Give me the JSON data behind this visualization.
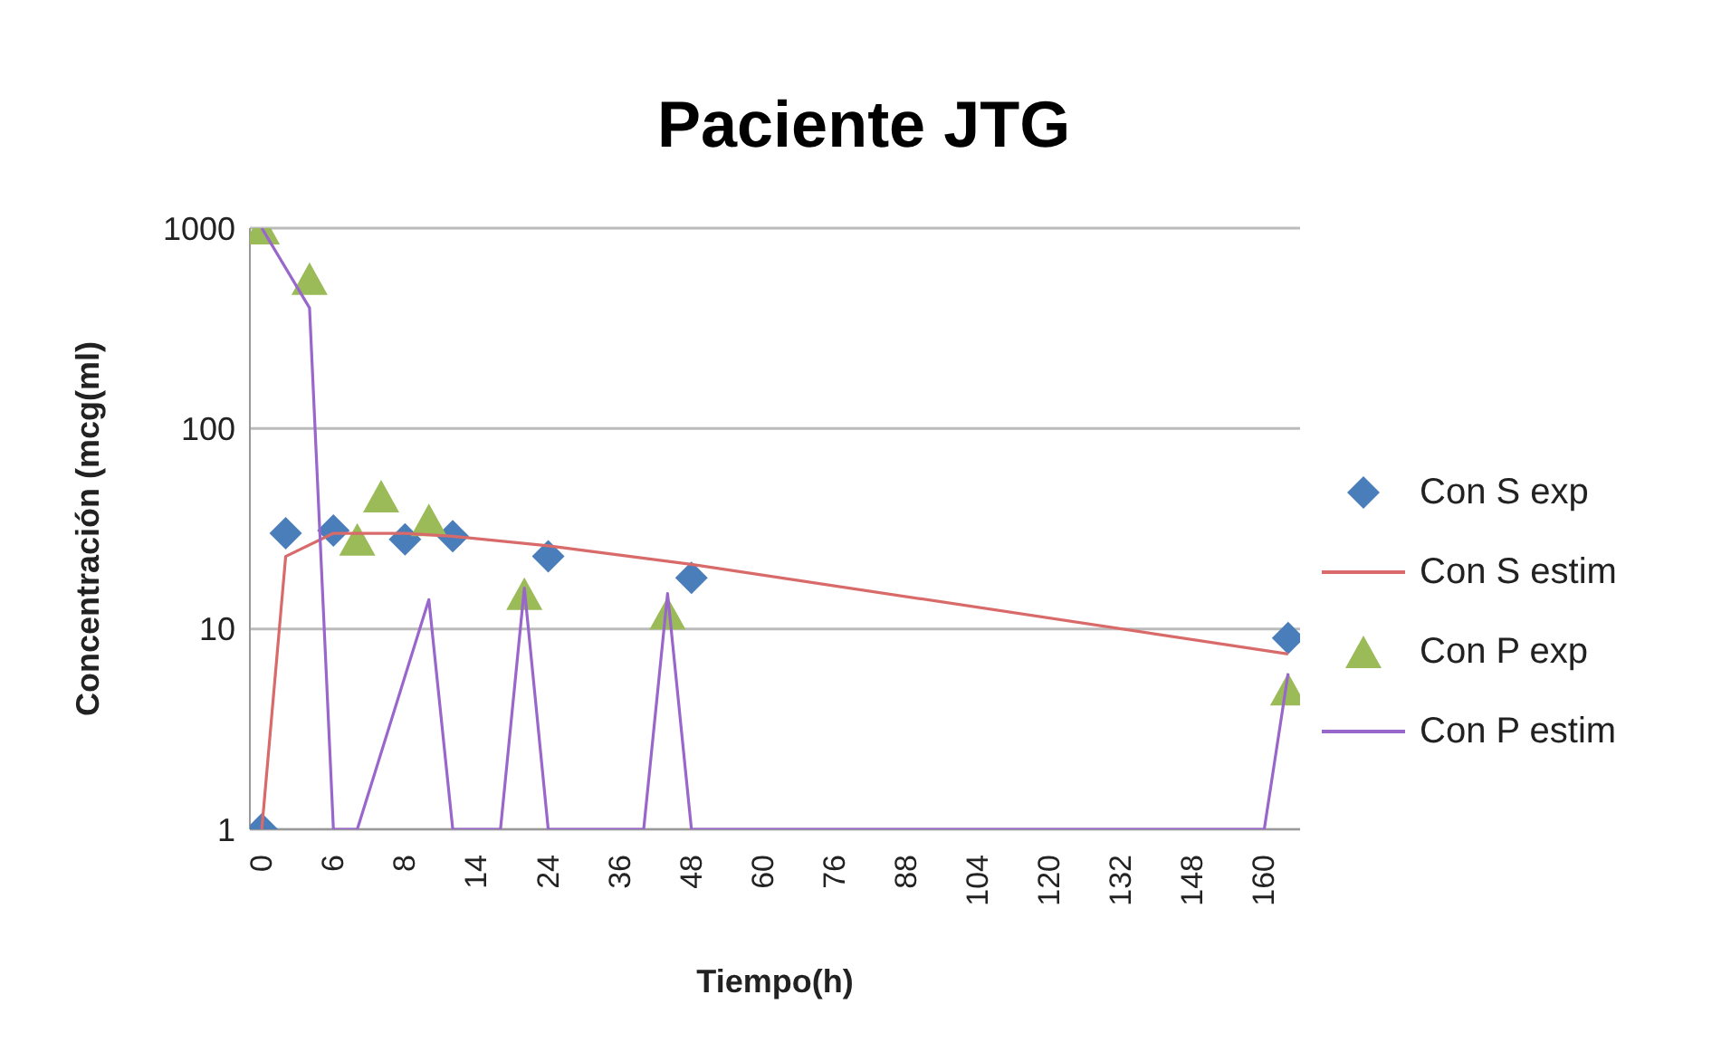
{
  "chart_data": {
    "type": "line",
    "title": "Paciente JTG",
    "xlabel": "Tiempo(h)",
    "ylabel": "Concentración (mcg(ml)",
    "categories": [
      "0",
      null,
      null,
      "6",
      null,
      null,
      "8",
      null,
      null,
      "14",
      null,
      null,
      "24",
      null,
      null,
      "36",
      null,
      null,
      "48",
      null,
      null,
      "60",
      null,
      null,
      "76",
      null,
      null,
      "88",
      null,
      null,
      "104",
      null,
      null,
      "120",
      null,
      null,
      "132",
      null,
      null,
      "148",
      null,
      null,
      "160",
      null
    ],
    "log": "y",
    "ylim": [
      1,
      1000
    ],
    "yticks": [
      1,
      10,
      100,
      1000
    ],
    "grid": "y",
    "legend": "right",
    "series": [
      {
        "name": "Con S exp",
        "type": "scatter",
        "marker": "diamond",
        "color": "#4a7ebb",
        "values": [
          1,
          30,
          null,
          31,
          null,
          null,
          28,
          null,
          29,
          null,
          null,
          null,
          23,
          null,
          null,
          null,
          null,
          null,
          18,
          null,
          null,
          null,
          null,
          null,
          null,
          null,
          null,
          null,
          null,
          null,
          null,
          null,
          null,
          null,
          null,
          null,
          null,
          null,
          null,
          null,
          null,
          null,
          null,
          9
        ]
      },
      {
        "name": "Con S estim",
        "marker": "none",
        "color": "#d96a6a",
        "values": [
          1,
          23,
          null,
          30,
          null,
          null,
          30,
          null,
          29,
          null,
          null,
          null,
          26,
          null,
          null,
          null,
          null,
          null,
          21,
          null,
          null,
          null,
          null,
          null,
          null,
          null,
          null,
          null,
          null,
          null,
          null,
          null,
          null,
          null,
          null,
          null,
          null,
          null,
          null,
          null,
          null,
          null,
          null,
          7.5
        ]
      },
      {
        "name": "Con P exp",
        "type": "scatter",
        "marker": "triangle",
        "color": "#9bbb59",
        "values": [
          1000,
          null,
          560,
          null,
          28,
          46,
          null,
          35,
          null,
          null,
          null,
          15,
          null,
          null,
          null,
          null,
          null,
          12,
          null,
          null,
          null,
          null,
          null,
          null,
          null,
          null,
          null,
          null,
          null,
          null,
          null,
          null,
          null,
          null,
          null,
          null,
          null,
          null,
          null,
          null,
          null,
          null,
          null,
          5
        ]
      },
      {
        "name": "Con P estim",
        "marker": "none",
        "color": "#9966cc",
        "values": [
          1000,
          null,
          400,
          1,
          1,
          null,
          null,
          14,
          1,
          null,
          1,
          16,
          1,
          null,
          null,
          null,
          1,
          15,
          1,
          null,
          null,
          null,
          null,
          null,
          null,
          null,
          null,
          null,
          null,
          null,
          null,
          null,
          null,
          null,
          null,
          null,
          null,
          null,
          null,
          null,
          null,
          null,
          1,
          6
        ]
      }
    ]
  }
}
